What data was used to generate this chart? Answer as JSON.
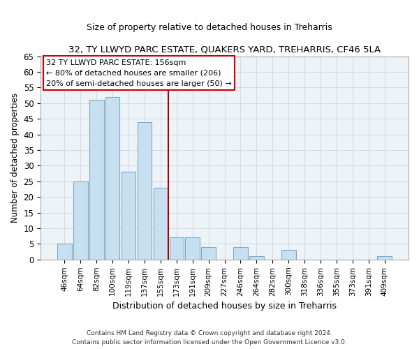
{
  "title": "32, TY LLWYD PARC ESTATE, QUAKERS YARD, TREHARRIS, CF46 5LA",
  "subtitle": "Size of property relative to detached houses in Treharris",
  "xlabel": "Distribution of detached houses by size in Treharris",
  "ylabel": "Number of detached properties",
  "bar_labels": [
    "46sqm",
    "64sqm",
    "82sqm",
    "100sqm",
    "119sqm",
    "137sqm",
    "155sqm",
    "173sqm",
    "191sqm",
    "209sqm",
    "227sqm",
    "246sqm",
    "264sqm",
    "282sqm",
    "300sqm",
    "318sqm",
    "336sqm",
    "355sqm",
    "373sqm",
    "391sqm",
    "409sqm"
  ],
  "bar_values": [
    5,
    25,
    51,
    52,
    28,
    44,
    23,
    7,
    7,
    4,
    0,
    4,
    1,
    0,
    3,
    0,
    0,
    0,
    0,
    0,
    1
  ],
  "bar_color": "#c8dff0",
  "bar_edge_color": "#7aaec8",
  "marker_index": 6,
  "marker_color": "#aa0000",
  "ylim": [
    0,
    65
  ],
  "yticks": [
    0,
    5,
    10,
    15,
    20,
    25,
    30,
    35,
    40,
    45,
    50,
    55,
    60,
    65
  ],
  "annotation_line1": "32 TY LLWYD PARC ESTATE: 156sqm",
  "annotation_line2": "← 80% of detached houses are smaller (206)",
  "annotation_line3": "20% of semi-detached houses are larger (50) →",
  "footnote1": "Contains HM Land Registry data © Crown copyright and database right 2024.",
  "footnote2": "Contains public sector information licensed under the Open Government Licence v3.0.",
  "grid_color": "#d0dce8",
  "ax_bg_color": "#eef3f8"
}
